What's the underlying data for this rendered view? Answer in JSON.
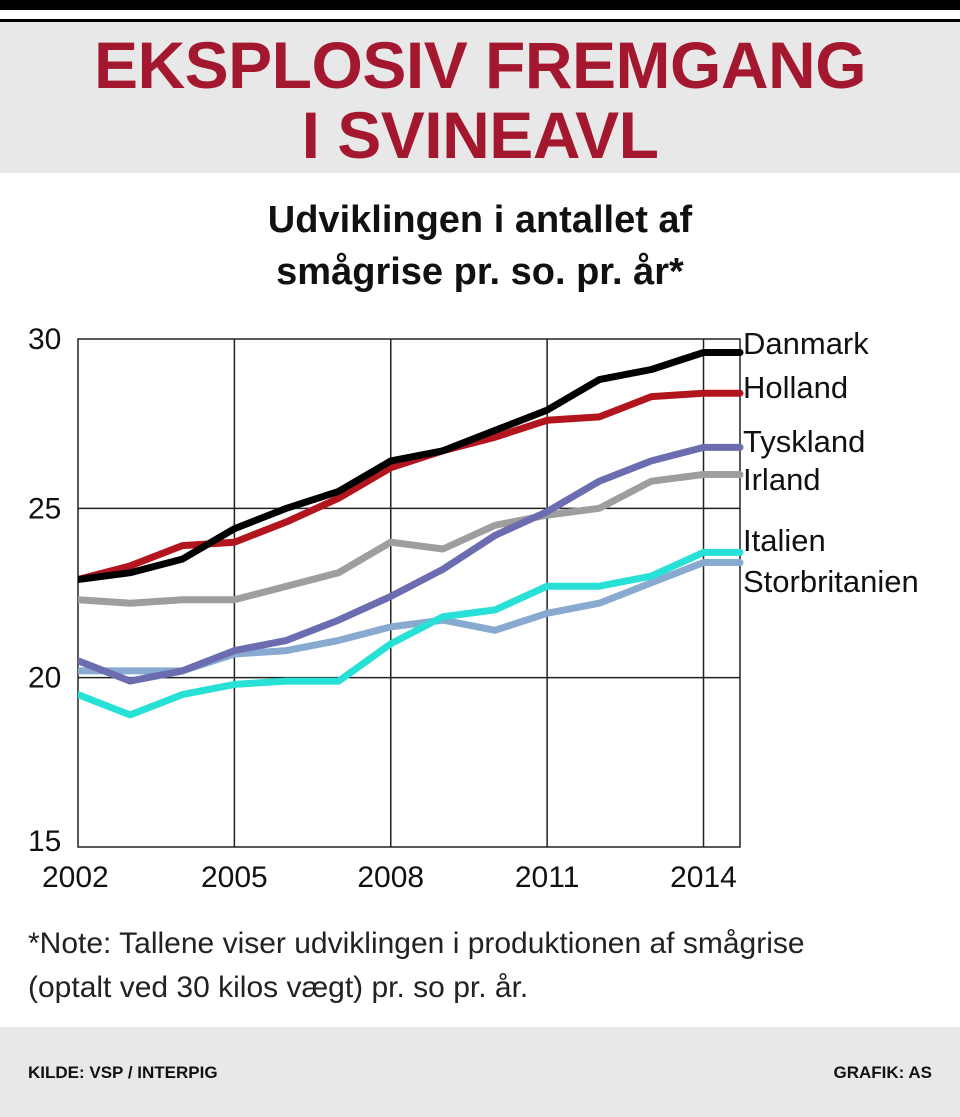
{
  "header": {
    "headline_line1": "EKSPLOSIV FREMGANG",
    "headline_line2": "I SVINEAVL"
  },
  "colors": {
    "headline": "#a3182f",
    "header_bg": "#e8e8e8"
  },
  "chart_data": {
    "type": "line",
    "title_line1": "Udviklingen i antallet af",
    "title_line2": "smågrise pr. so. pr. år*",
    "xlabel": "",
    "ylabel": "",
    "xlim": [
      2002,
      2014.7
    ],
    "ylim": [
      15,
      30
    ],
    "x_ticks": [
      2002,
      2005,
      2008,
      2011,
      2014
    ],
    "x_tick_labels": [
      "2002",
      "2005",
      "2008",
      "2011",
      "2014"
    ],
    "y_ticks": [
      15,
      20,
      25,
      30
    ],
    "y_tick_labels": [
      "15",
      "20",
      "25",
      "30"
    ],
    "grid": true,
    "legend": "direct labels at line ends (right)",
    "x": [
      2002,
      2003,
      2004,
      2005,
      2006,
      2007,
      2008,
      2009,
      2010,
      2011,
      2012,
      2013,
      2014,
      2014.7
    ],
    "series": [
      {
        "name": "Danmark",
        "color": "#000000",
        "values": [
          22.9,
          23.1,
          23.5,
          24.4,
          25.0,
          25.5,
          26.4,
          26.7,
          27.3,
          27.9,
          28.8,
          29.1,
          29.6,
          29.6
        ]
      },
      {
        "name": "Holland",
        "color": "#b3151f",
        "values": [
          22.9,
          23.3,
          23.9,
          24.0,
          24.6,
          25.3,
          26.2,
          26.7,
          27.1,
          27.6,
          27.7,
          28.3,
          28.4,
          28.4
        ]
      },
      {
        "name": "Tyskland",
        "color": "#6c6cb0",
        "values": [
          20.5,
          19.9,
          20.2,
          20.8,
          21.1,
          21.7,
          22.4,
          23.2,
          24.2,
          24.9,
          25.8,
          26.4,
          26.8,
          26.8
        ]
      },
      {
        "name": "Irland",
        "color": "#9e9e9e",
        "values": [
          22.3,
          22.2,
          22.3,
          22.3,
          22.7,
          23.1,
          24.0,
          23.8,
          24.5,
          24.8,
          25.0,
          25.8,
          26.0,
          26.0
        ]
      },
      {
        "name": "Italien",
        "color": "#27e0d6",
        "values": [
          19.5,
          18.9,
          19.5,
          19.8,
          19.9,
          19.9,
          21.0,
          21.8,
          22.0,
          22.7,
          22.7,
          23.0,
          23.7,
          23.7
        ]
      },
      {
        "name": "Storbritanien",
        "color": "#88aad0",
        "values": [
          20.2,
          20.2,
          20.2,
          20.7,
          20.8,
          21.1,
          21.5,
          21.7,
          21.4,
          21.9,
          22.2,
          22.8,
          23.4,
          23.4
        ]
      }
    ]
  },
  "note": {
    "line1": "*Note: Tallene viser udviklingen i produktionen af smågrise",
    "line2": "(optalt ved 30 kilos vægt) pr. so pr. år."
  },
  "footer": {
    "source": "KILDE: VSP / INTERPIG",
    "credit": "GRAFIK: AS"
  }
}
